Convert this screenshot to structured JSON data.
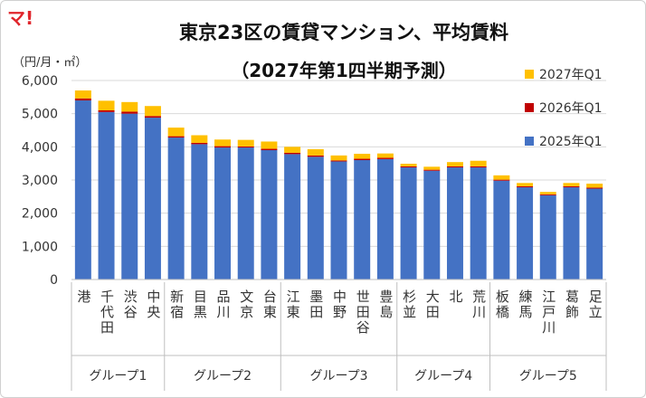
{
  "brand": "マ!",
  "chart_data": {
    "type": "bar",
    "stacked": true,
    "title": "東京23区の賃貸マンション、平均賃料",
    "subtitle": "（2027年第1四半期予測）",
    "unit_label": "（円/月・㎡）",
    "ylim": [
      0,
      6000
    ],
    "yticks": [
      "0",
      "1,000",
      "2,000",
      "3,000",
      "4,000",
      "5,000",
      "6,000"
    ],
    "grid": true,
    "legend_position": "right",
    "categories": [
      "港",
      "千代田",
      "渋谷",
      "中央",
      "新宿",
      "目黒",
      "品川",
      "文京",
      "台東",
      "江東",
      "墨田",
      "中野",
      "世田谷",
      "豊島",
      "杉並",
      "大田",
      "北",
      "荒川",
      "板橋",
      "練馬",
      "江戸川",
      "葛飾",
      "足立"
    ],
    "groups": [
      {
        "name": "グループ1",
        "count": 4
      },
      {
        "name": "グループ2",
        "count": 5
      },
      {
        "name": "グループ3",
        "count": 5
      },
      {
        "name": "グループ4",
        "count": 4
      },
      {
        "name": "グループ5",
        "count": 5
      }
    ],
    "series": [
      {
        "name": "2025年Q1",
        "color": "#4472c4",
        "values": [
          5400,
          5050,
          5000,
          4880,
          4280,
          4080,
          3980,
          3980,
          3900,
          3780,
          3700,
          3560,
          3600,
          3630,
          3380,
          3280,
          3380,
          3380,
          2980,
          2780,
          2540,
          2780,
          2740
        ]
      },
      {
        "name": "2026年Q1",
        "color": "#c00000",
        "values": [
          60,
          50,
          60,
          50,
          40,
          40,
          40,
          30,
          40,
          40,
          40,
          30,
          40,
          40,
          30,
          30,
          30,
          30,
          30,
          30,
          30,
          30,
          30
        ]
      },
      {
        "name": "2027年Q1",
        "color": "#ffc000",
        "values": [
          240,
          290,
          290,
          300,
          260,
          230,
          200,
          200,
          220,
          180,
          190,
          150,
          150,
          130,
          80,
          90,
          130,
          170,
          130,
          100,
          70,
          100,
          120
        ]
      }
    ]
  }
}
